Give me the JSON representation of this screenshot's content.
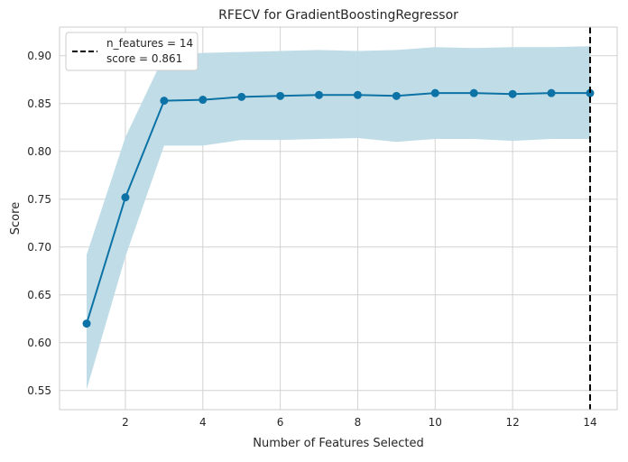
{
  "chart_data": {
    "type": "line",
    "title": "RFECV for GradientBoostingRegressor",
    "xlabel": "Number of Features Selected",
    "ylabel": "Score",
    "xlim": [
      0.3,
      14.7
    ],
    "ylim": [
      0.53,
      0.93
    ],
    "xticks": [
      2,
      4,
      6,
      8,
      10,
      12,
      14
    ],
    "yticks": [
      0.55,
      0.6,
      0.65,
      0.7,
      0.75,
      0.8,
      0.85,
      0.9
    ],
    "grid": true,
    "legend_position": "top-left",
    "series": [
      {
        "x": [
          1,
          2,
          3,
          4,
          5,
          6,
          7,
          8,
          9,
          10,
          11,
          12,
          13,
          14
        ],
        "values": [
          0.62,
          0.752,
          0.853,
          0.854,
          0.857,
          0.858,
          0.859,
          0.859,
          0.858,
          0.861,
          0.861,
          0.86,
          0.861,
          0.861
        ],
        "upper": [
          0.692,
          0.815,
          0.9,
          0.903,
          0.904,
          0.905,
          0.906,
          0.905,
          0.906,
          0.909,
          0.908,
          0.909,
          0.909,
          0.91
        ],
        "lower": [
          0.551,
          0.69,
          0.806,
          0.806,
          0.812,
          0.812,
          0.813,
          0.814,
          0.81,
          0.813,
          0.813,
          0.811,
          0.813,
          0.813
        ]
      }
    ],
    "selected_line": {
      "x": 14,
      "legend_line1": "n_features = 14",
      "legend_line2": "score = 0.861"
    },
    "colors": {
      "line": "#0d72a5",
      "band": "#bddbe6",
      "grid": "#d2d2d2",
      "selected": "#000000",
      "frame": "#cccccc"
    }
  }
}
